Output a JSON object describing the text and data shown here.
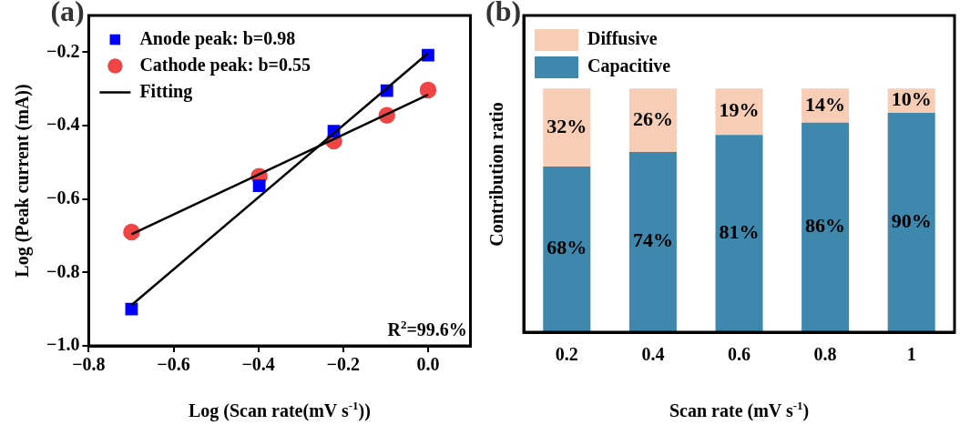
{
  "chart_data": [
    {
      "type": "scatter",
      "title": "(a)",
      "xlabel": "Log (Scan rate(mV s$^{-1}$))",
      "ylabel": "Log (Peak current (mA))",
      "xlim": [
        -0.8,
        0.1
      ],
      "xticks": [
        {
          "value": -0.8,
          "label": "−0.8"
        },
        {
          "value": -0.6,
          "label": "−0.6"
        },
        {
          "value": -0.4,
          "label": "−0.4"
        },
        {
          "value": -0.2,
          "label": "−0.2"
        },
        {
          "value": 0,
          "label": "0.0"
        }
      ],
      "ylim": [
        -1.0,
        -0.1
      ],
      "yticks": [
        {
          "value": -1.0,
          "label": "−1.0"
        },
        {
          "value": -0.8,
          "label": "−0.8"
        },
        {
          "value": -0.6,
          "label": "−0.6"
        },
        {
          "value": -0.4,
          "label": "−0.4"
        },
        {
          "value": -0.2,
          "label": "−0.2"
        }
      ],
      "grid": false,
      "legend": "top left",
      "annotations": [
        "R$^{2}$=99.6%"
      ],
      "series": [
        {
          "name": "Anode peak: b=0.98",
          "color": "#0000ff",
          "marker": "square",
          "x": [
            -0.699,
            -0.398,
            -0.222,
            -0.097,
            0
          ],
          "values": [
            -0.9,
            -0.564,
            -0.415,
            -0.305,
            -0.208
          ]
        },
        {
          "name": "Cathode peak: b=0.55",
          "color": "#f04545",
          "marker": "circle",
          "x": [
            -0.699,
            -0.398,
            -0.222,
            -0.097,
            0
          ],
          "values": [
            -0.69,
            -0.538,
            -0.442,
            -0.372,
            -0.303
          ]
        },
        {
          "name": "Fitting",
          "type": "line",
          "color": "#000000",
          "marker": "none",
          "x": [
            -0.699,
            0
          ],
          "values": [
            -0.889,
            -0.203
          ]
        },
        {
          "type": "line",
          "color": "#000000",
          "marker": "none",
          "x": [
            -0.699,
            0
          ],
          "values": [
            -0.696,
            -0.316
          ]
        }
      ]
    },
    {
      "type": "bar",
      "stacked": true,
      "title": "(b)",
      "xlabel": "Scan rate (mV s$^{-1}$)",
      "ylabel": "Contribution ratio",
      "categories": [
        "0.2",
        "0.4",
        "0.6",
        "0.8",
        "1"
      ],
      "ylim": [
        0,
        130
      ],
      "tick_labels": "x",
      "grid": false,
      "legend": "top left",
      "series": [
        {
          "name": "Capacitive",
          "color": "#3f88ad",
          "values": [
            68,
            74,
            81,
            86,
            90
          ],
          "value_labels": [
            "68%",
            "74%",
            "81%",
            "86%",
            "90%"
          ]
        },
        {
          "name": "Diffusive",
          "color": "#f8cdb5",
          "values": [
            32,
            26,
            19,
            14,
            10
          ],
          "value_labels": [
            "32%",
            "26%",
            "19%",
            "14%",
            "10%"
          ]
        }
      ]
    }
  ]
}
